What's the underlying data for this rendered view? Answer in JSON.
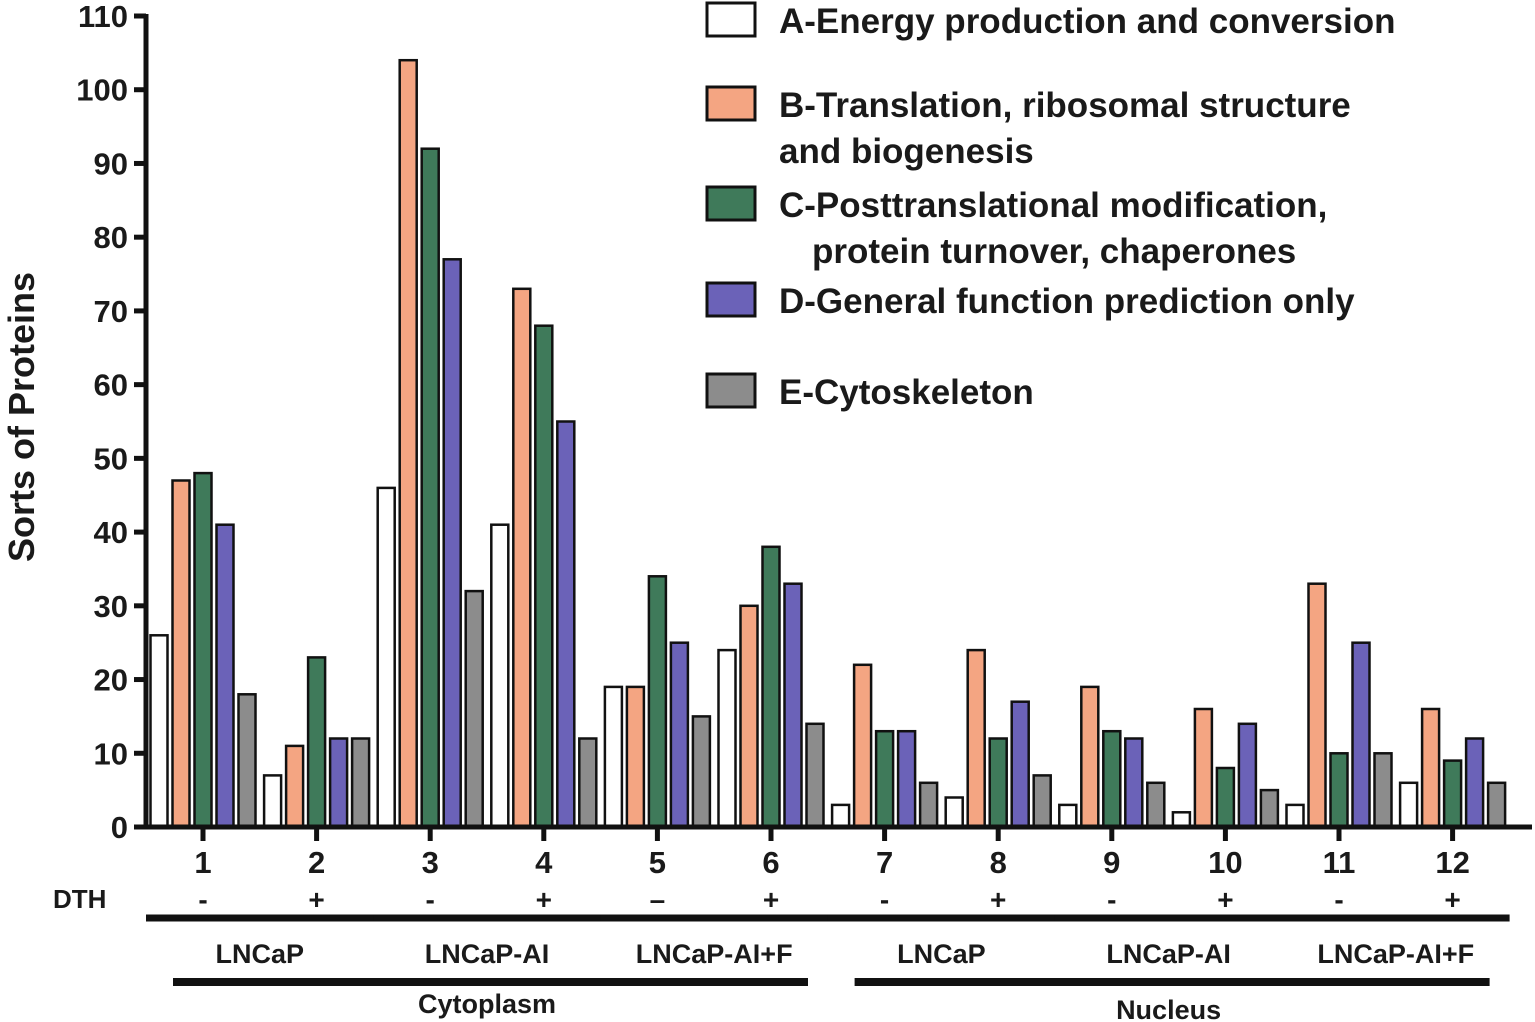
{
  "chart_data": {
    "type": "bar",
    "xlabel": "",
    "ylabel": "Sorts of Proteins",
    "ylim": [
      0,
      110
    ],
    "yticks": [
      0,
      10,
      20,
      30,
      40,
      50,
      60,
      70,
      80,
      90,
      100,
      110
    ],
    "grid": false,
    "legend_position": "top-right",
    "categories": [
      "1",
      "2",
      "3",
      "4",
      "5",
      "6",
      "7",
      "8",
      "9",
      "10",
      "11",
      "12"
    ],
    "series": [
      {
        "name": "A-Energy production and conversion",
        "legend_lines": [
          "A-Energy production and conversion"
        ],
        "color": "#ffffff",
        "values": [
          26,
          7,
          46,
          41,
          19,
          24,
          3,
          4,
          3,
          2,
          3,
          6
        ]
      },
      {
        "name": "B-Translation, ribosomal structure and biogenesis",
        "legend_lines": [
          "B-Translation, ribosomal structure",
          "and biogenesis"
        ],
        "color": "#f4a582",
        "values": [
          47,
          11,
          104,
          73,
          19,
          30,
          22,
          24,
          19,
          16,
          33,
          16
        ]
      },
      {
        "name": "C-Posttranslational modification, protein turnover, chaperones",
        "legend_lines": [
          "C-Posttranslational modification,",
          "protein turnover, chaperones"
        ],
        "color": "#3f7a5a",
        "values": [
          48,
          23,
          92,
          68,
          34,
          38,
          13,
          12,
          13,
          8,
          10,
          9
        ]
      },
      {
        "name": "D-General function prediction only",
        "legend_lines": [
          "D-General function prediction only"
        ],
        "color": "#6b62b8",
        "values": [
          41,
          12,
          77,
          55,
          25,
          33,
          13,
          17,
          12,
          14,
          25,
          12
        ]
      },
      {
        "name": "E-Cytoskeleton",
        "legend_lines": [
          "E-Cytoskeleton"
        ],
        "color": "#8c8c8c",
        "values": [
          18,
          12,
          32,
          12,
          15,
          14,
          6,
          7,
          6,
          5,
          10,
          6
        ]
      }
    ],
    "dth_label": "DTH",
    "dth": [
      "-",
      "+",
      "-",
      "+",
      "–",
      "+",
      "-",
      "+",
      "-",
      "+",
      "-",
      "+"
    ],
    "groups": [
      {
        "label": "LNCaP",
        "span": [
          1,
          2
        ]
      },
      {
        "label": "LNCaP-AI",
        "span": [
          3,
          4
        ]
      },
      {
        "label": "LNCaP-AI+F",
        "span": [
          5,
          6
        ]
      },
      {
        "label": "LNCaP",
        "span": [
          7,
          8
        ]
      },
      {
        "label": "LNCaP-AI",
        "span": [
          9,
          10
        ]
      },
      {
        "label": "LNCaP-AI+F",
        "span": [
          11,
          12
        ]
      }
    ],
    "compartments": [
      {
        "label": "Cytoplasm",
        "span": [
          1,
          6
        ]
      },
      {
        "label": "Nucleus",
        "span": [
          7,
          12
        ]
      }
    ]
  }
}
